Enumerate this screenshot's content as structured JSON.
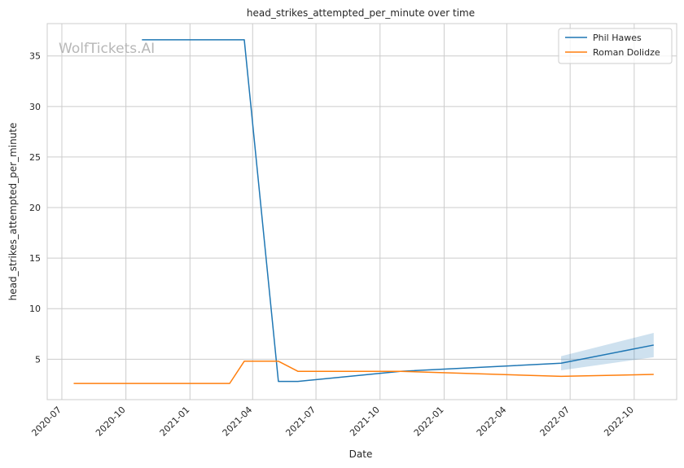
{
  "chart_data": {
    "type": "line",
    "title": "head_strikes_attempted_per_minute over time",
    "xlabel": "Date",
    "ylabel": "head_strikes_attempted_per_minute",
    "watermark": "WolfTickets.AI",
    "xlim": [
      "2020-06-10",
      "2022-12-01"
    ],
    "ylim": [
      1.0,
      38.2
    ],
    "x_ticks": [
      "2020-07",
      "2020-10",
      "2021-01",
      "2021-04",
      "2021-07",
      "2021-10",
      "2022-01",
      "2022-04",
      "2022-07",
      "2022-10"
    ],
    "y_ticks": [
      5,
      10,
      15,
      20,
      25,
      30,
      35
    ],
    "grid": true,
    "legend_position": "top-right",
    "series": [
      {
        "name": "Phil Hawes",
        "color": "#1f77b4",
        "x": [
          "2020-10-24",
          "2021-03-20",
          "2021-05-08",
          "2021-06-05",
          "2021-10-30",
          "2022-06-18",
          "2022-10-29"
        ],
        "y": [
          36.6,
          36.6,
          2.8,
          2.8,
          3.8,
          4.6,
          6.4
        ],
        "band": {
          "x": [
            "2022-06-18",
            "2022-10-29"
          ],
          "lower": [
            3.9,
            5.2
          ],
          "upper": [
            5.3,
            7.6
          ]
        }
      },
      {
        "name": "Roman Dolidze",
        "color": "#ff7f0e",
        "x": [
          "2020-07-18",
          "2021-02-27",
          "2021-03-20",
          "2021-05-08",
          "2021-06-05",
          "2021-10-30",
          "2022-06-18",
          "2022-10-29"
        ],
        "y": [
          2.6,
          2.6,
          4.8,
          4.8,
          3.8,
          3.8,
          3.3,
          3.5
        ]
      }
    ]
  }
}
